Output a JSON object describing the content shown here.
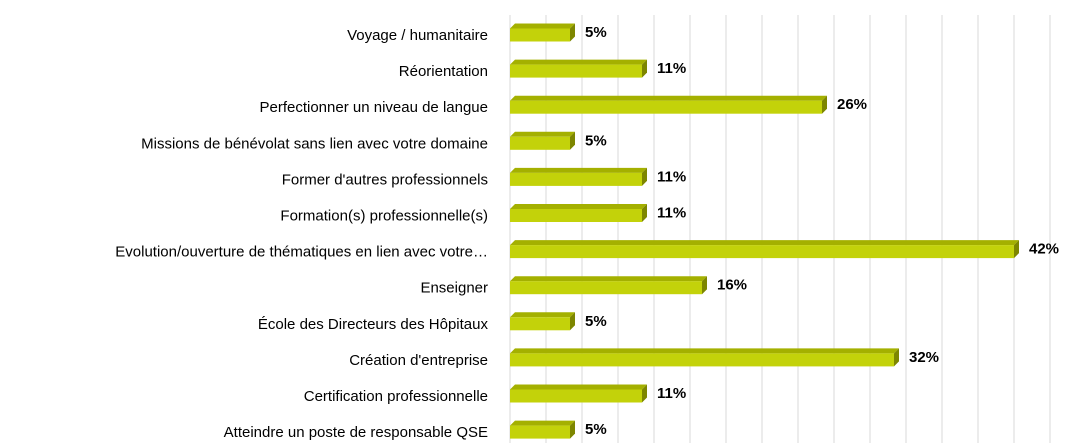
{
  "chart_data": {
    "type": "barh",
    "categories": [
      "Voyage / humanitaire",
      "Réorientation",
      "Perfectionner un niveau de langue",
      "Missions de bénévolat sans lien avec votre domaine",
      "Former d'autres professionnels",
      "Formation(s) professionnelle(s)",
      "Evolution/ouverture de thématiques en lien avec votre…",
      "Enseigner",
      "École des Directeurs des Hôpitaux",
      "Création d'entreprise",
      "Certification professionnelle",
      "Atteindre un poste de responsable QSE"
    ],
    "values": [
      5,
      11,
      26,
      5,
      11,
      11,
      42,
      16,
      5,
      32,
      11,
      5
    ],
    "value_labels": [
      "5%",
      "11%",
      "26%",
      "5%",
      "11%",
      "11%",
      "42%",
      "16%",
      "5%",
      "32%",
      "11%",
      "5%"
    ],
    "color": "#c3d20a",
    "xlim": [
      0,
      45
    ],
    "xticks": [
      0,
      3,
      6,
      9,
      12,
      15,
      18,
      21,
      24,
      27,
      30,
      33,
      36,
      39,
      42,
      45
    ],
    "grid": true
  }
}
